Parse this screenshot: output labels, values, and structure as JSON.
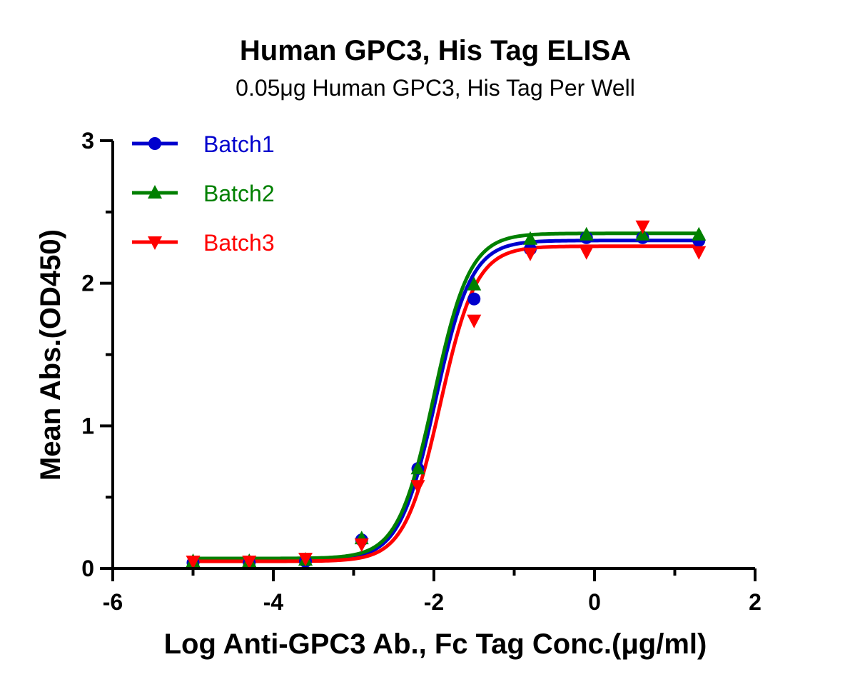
{
  "chart_data": {
    "type": "scatter",
    "title": "Human GPC3, His Tag ELISA",
    "subtitle": "0.05μg Human GPC3, His Tag Per Well",
    "xlabel": "Log Anti-GPC3 Ab., Fc Tag Conc.(μg/ml)",
    "ylabel": "Mean Abs.(OD450)",
    "xlim": [
      -6,
      2
    ],
    "ylim": [
      0,
      3
    ],
    "xticks": [
      -6,
      -4,
      -2,
      0,
      2
    ],
    "yticks": [
      0,
      1,
      2,
      3
    ],
    "xtick_labels": [
      "-6",
      "-4",
      "-2",
      "0",
      "2"
    ],
    "ytick_labels": [
      "0",
      "1",
      "2",
      "3"
    ],
    "grid": false,
    "legend_position": "top-left",
    "x": [
      -5.0,
      -4.3,
      -3.6,
      -2.9,
      -2.2,
      -1.5,
      -0.8,
      -0.1,
      0.6,
      1.3
    ],
    "series": [
      {
        "name": "Batch1",
        "color": "#0000CD",
        "marker": "circle",
        "values": [
          0.04,
          0.04,
          0.05,
          0.2,
          0.7,
          1.89,
          2.24,
          2.32,
          2.32,
          2.3
        ],
        "fit": {
          "bottom": 0.06,
          "top": 2.3,
          "logEC50": -1.98,
          "hill": 1.95
        }
      },
      {
        "name": "Batch2",
        "color": "#008000",
        "marker": "triangle-up",
        "values": [
          0.05,
          0.05,
          0.06,
          0.21,
          0.7,
          1.99,
          2.31,
          2.34,
          2.34,
          2.34
        ],
        "fit": {
          "bottom": 0.07,
          "top": 2.35,
          "logEC50": -2.0,
          "hill": 1.95
        }
      },
      {
        "name": "Batch3",
        "color": "#FF0000",
        "marker": "triangle-down",
        "values": [
          0.05,
          0.05,
          0.07,
          0.17,
          0.58,
          1.74,
          2.21,
          2.22,
          2.4,
          2.22
        ],
        "fit": {
          "bottom": 0.05,
          "top": 2.26,
          "logEC50": -1.92,
          "hill": 1.95
        }
      }
    ]
  }
}
